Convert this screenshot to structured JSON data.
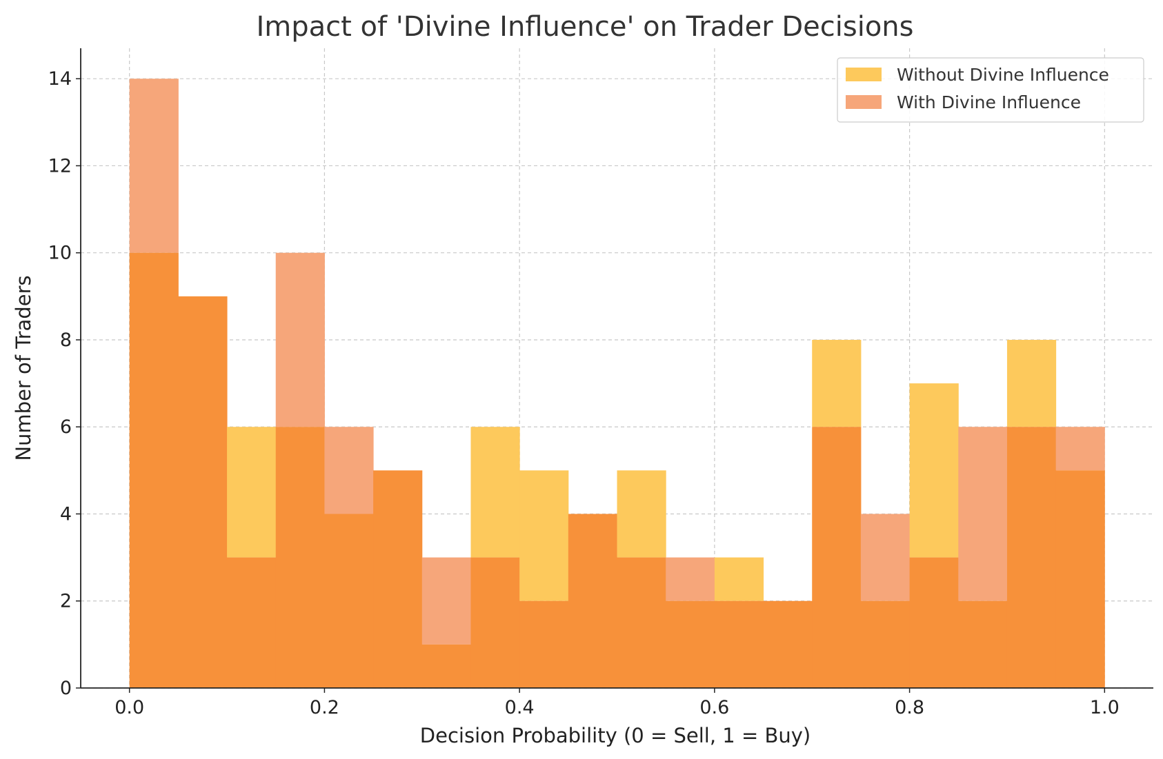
{
  "chart_data": {
    "type": "bar",
    "title": "Impact of 'Divine Influence' on Trader Decisions",
    "xlabel": "Decision Probability (0 = Sell, 1 = Buy)",
    "ylabel": "Number of Traders",
    "xlim": [
      -0.05,
      1.05
    ],
    "ylim": [
      0,
      14.7
    ],
    "xticks": [
      "0.0",
      "0.2",
      "0.4",
      "0.6",
      "0.8",
      "1.0"
    ],
    "xtick_values": [
      0.0,
      0.2,
      0.4,
      0.6,
      0.8,
      1.0
    ],
    "yticks": [
      "0",
      "2",
      "4",
      "6",
      "8",
      "10",
      "12",
      "14"
    ],
    "ytick_values": [
      0,
      2,
      4,
      6,
      8,
      10,
      12,
      14
    ],
    "grid": true,
    "legend_position": "top-right",
    "bin_edges": [
      0.0,
      0.05,
      0.1,
      0.15,
      0.2,
      0.25,
      0.3,
      0.35,
      0.4,
      0.45,
      0.5,
      0.55,
      0.6,
      0.65,
      0.7,
      0.75,
      0.8,
      0.85,
      0.9,
      0.95,
      1.0
    ],
    "series": [
      {
        "name": "Without Divine Influence",
        "color": "#fdc95c",
        "overlap_color": "#f7913a",
        "values": [
          10,
          9,
          6,
          6,
          4,
          5,
          1,
          6,
          5,
          4,
          5,
          2,
          3,
          2,
          8,
          2,
          7,
          2,
          8,
          5
        ]
      },
      {
        "name": "With Divine Influence",
        "color": "#f6a67a",
        "values": [
          14,
          9,
          3,
          10,
          6,
          5,
          3,
          3,
          2,
          4,
          3,
          3,
          2,
          2,
          6,
          4,
          3,
          6,
          6,
          6
        ]
      }
    ]
  }
}
